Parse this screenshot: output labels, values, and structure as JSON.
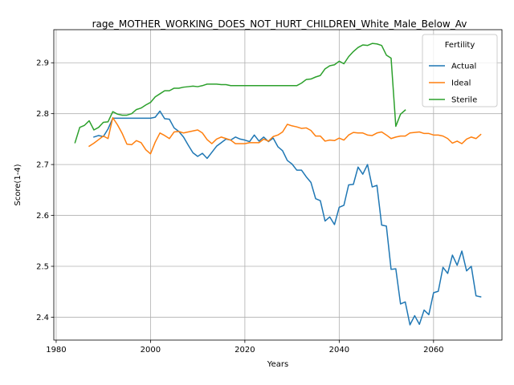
{
  "chart_data": {
    "type": "line",
    "title": "rage_MOTHER_WORKING_DOES_NOT_HURT_CHILDREN_White_Male_Below_Av",
    "xlabel": "Years",
    "ylabel": "Score(1-4)",
    "xlim": [
      1979.5,
      2074.5
    ],
    "ylim": [
      2.355,
      2.965
    ],
    "xticks": [
      1980,
      2000,
      2020,
      2040,
      2060
    ],
    "yticks": [
      2.4,
      2.5,
      2.6,
      2.7,
      2.8,
      2.9
    ],
    "grid": true,
    "legend": {
      "title": "Fertility",
      "position": "top-right"
    },
    "series": [
      {
        "name": "Actual",
        "color": "#1f77b4",
        "x": [
          1988,
          1989,
          1990,
          1991,
          1992,
          1993,
          1994,
          1995,
          1996,
          1997,
          1998,
          1999,
          2000,
          2001,
          2002,
          2003,
          2004,
          2005,
          2006,
          2007,
          2008,
          2009,
          2010,
          2011,
          2012,
          2013,
          2014,
          2015,
          2016,
          2017,
          2018,
          2019,
          2020,
          2021,
          2022,
          2023,
          2024,
          2025,
          2026,
          2027,
          2028,
          2029,
          2030,
          2031,
          2032,
          2033,
          2034,
          2035,
          2036,
          2037,
          2038,
          2039,
          2040,
          2041,
          2042,
          2043,
          2044,
          2045,
          2046,
          2047,
          2048,
          2049,
          2050,
          2051,
          2052,
          2053,
          2054,
          2055,
          2056,
          2057,
          2058,
          2059,
          2060,
          2061,
          2062,
          2063,
          2064,
          2065,
          2066,
          2067,
          2068,
          2069,
          2070
        ],
        "y": [
          2.754,
          2.757,
          2.755,
          2.77,
          2.791,
          2.791,
          2.791,
          2.791,
          2.791,
          2.791,
          2.791,
          2.791,
          2.791,
          2.793,
          2.805,
          2.79,
          2.789,
          2.772,
          2.765,
          2.754,
          2.738,
          2.723,
          2.716,
          2.722,
          2.712,
          2.724,
          2.736,
          2.743,
          2.75,
          2.748,
          2.754,
          2.75,
          2.748,
          2.745,
          2.758,
          2.746,
          2.754,
          2.745,
          2.752,
          2.735,
          2.727,
          2.708,
          2.701,
          2.689,
          2.689,
          2.676,
          2.665,
          2.633,
          2.629,
          2.589,
          2.597,
          2.582,
          2.616,
          2.62,
          2.66,
          2.661,
          2.695,
          2.681,
          2.7,
          2.656,
          2.659,
          2.581,
          2.579,
          2.494,
          2.495,
          2.426,
          2.43,
          2.385,
          2.403,
          2.386,
          2.414,
          2.405,
          2.448,
          2.451,
          2.498,
          2.486,
          2.522,
          2.502,
          2.53,
          2.491,
          2.5,
          2.442,
          2.44
        ]
      },
      {
        "name": "Ideal",
        "color": "#ff7f0e",
        "x": [
          1987,
          1988,
          1989,
          1990,
          1991,
          1992,
          1993,
          1994,
          1995,
          1996,
          1997,
          1998,
          1999,
          2000,
          2001,
          2002,
          2003,
          2004,
          2005,
          2006,
          2007,
          2008,
          2009,
          2010,
          2011,
          2012,
          2013,
          2014,
          2015,
          2016,
          2017,
          2018,
          2019,
          2020,
          2021,
          2022,
          2023,
          2024,
          2025,
          2026,
          2027,
          2028,
          2029,
          2030,
          2031,
          2032,
          2033,
          2034,
          2035,
          2036,
          2037,
          2038,
          2039,
          2040,
          2041,
          2042,
          2043,
          2044,
          2045,
          2046,
          2047,
          2048,
          2049,
          2050,
          2051,
          2052,
          2053,
          2054,
          2055,
          2056,
          2057,
          2058,
          2059,
          2060,
          2061,
          2062,
          2063,
          2064,
          2065,
          2066,
          2067,
          2068,
          2069,
          2070
        ],
        "y": [
          2.736,
          2.742,
          2.749,
          2.756,
          2.751,
          2.792,
          2.778,
          2.761,
          2.74,
          2.739,
          2.747,
          2.743,
          2.729,
          2.721,
          2.744,
          2.762,
          2.757,
          2.751,
          2.764,
          2.765,
          2.762,
          2.764,
          2.766,
          2.768,
          2.762,
          2.749,
          2.741,
          2.75,
          2.754,
          2.751,
          2.748,
          2.741,
          2.741,
          2.741,
          2.743,
          2.743,
          2.743,
          2.75,
          2.746,
          2.755,
          2.758,
          2.764,
          2.779,
          2.776,
          2.774,
          2.771,
          2.772,
          2.767,
          2.756,
          2.756,
          2.746,
          2.748,
          2.747,
          2.752,
          2.748,
          2.758,
          2.763,
          2.762,
          2.762,
          2.758,
          2.757,
          2.762,
          2.764,
          2.758,
          2.751,
          2.754,
          2.756,
          2.756,
          2.762,
          2.763,
          2.764,
          2.761,
          2.761,
          2.758,
          2.758,
          2.756,
          2.751,
          2.742,
          2.746,
          2.741,
          2.75,
          2.754,
          2.751,
          2.759
        ]
      },
      {
        "name": "Sterile",
        "color": "#2ca02c",
        "x": [
          1984,
          1985,
          1986,
          1987,
          1988,
          1989,
          1990,
          1991,
          1992,
          1993,
          1994,
          1995,
          1996,
          1997,
          1998,
          1999,
          2000,
          2001,
          2002,
          2003,
          2004,
          2005,
          2006,
          2007,
          2008,
          2009,
          2010,
          2011,
          2012,
          2013,
          2014,
          2015,
          2016,
          2017,
          2018,
          2019,
          2020,
          2021,
          2022,
          2023,
          2024,
          2025,
          2026,
          2027,
          2028,
          2029,
          2030,
          2031,
          2032,
          2033,
          2034,
          2035,
          2036,
          2037,
          2038,
          2039,
          2040,
          2041,
          2042,
          2043,
          2044,
          2045,
          2046,
          2047,
          2048,
          2049,
          2050,
          2051,
          2052,
          2053,
          2054
        ],
        "y": [
          2.743,
          2.773,
          2.777,
          2.786,
          2.768,
          2.773,
          2.783,
          2.784,
          2.804,
          2.799,
          2.797,
          2.797,
          2.8,
          2.808,
          2.811,
          2.817,
          2.822,
          2.833,
          2.839,
          2.845,
          2.845,
          2.85,
          2.85,
          2.852,
          2.853,
          2.854,
          2.853,
          2.855,
          2.858,
          2.858,
          2.858,
          2.857,
          2.857,
          2.855,
          2.855,
          2.855,
          2.855,
          2.855,
          2.855,
          2.855,
          2.855,
          2.855,
          2.855,
          2.855,
          2.855,
          2.855,
          2.855,
          2.855,
          2.86,
          2.867,
          2.868,
          2.872,
          2.875,
          2.888,
          2.894,
          2.896,
          2.903,
          2.898,
          2.912,
          2.922,
          2.93,
          2.935,
          2.934,
          2.938,
          2.937,
          2.934,
          2.915,
          2.909,
          2.775,
          2.799,
          2.807
        ]
      }
    ]
  }
}
